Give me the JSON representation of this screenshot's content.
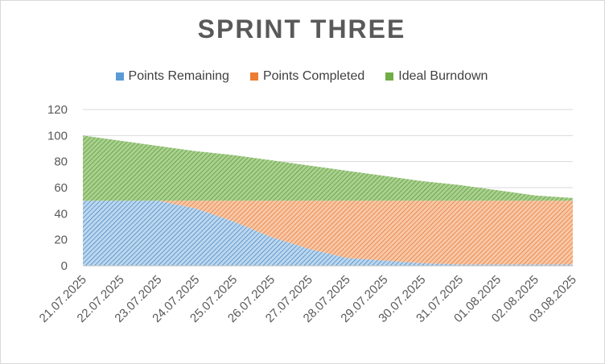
{
  "chart_data": {
    "type": "area",
    "title": "SPRINT THREE",
    "xlabel": "",
    "ylabel": "",
    "ylim": [
      0,
      120
    ],
    "yticks": [
      0,
      20,
      40,
      60,
      80,
      100,
      120
    ],
    "grid": true,
    "legend_position": "top",
    "stacked": true,
    "categories": [
      "21.07.2025",
      "22.07.2025",
      "23.07.2025",
      "24.07.2025",
      "25.07.2025",
      "26.07.2025",
      "27.07.2025",
      "28.07.2025",
      "29.07.2025",
      "30.07.2025",
      "31.07.2025",
      "01.08.2025",
      "02.08.2025",
      "03.08.2025"
    ],
    "series": [
      {
        "name": "Points Remaining",
        "color": "#5b9bd5",
        "values": [
          50,
          50,
          50,
          44,
          34,
          22,
          13,
          6,
          4,
          2,
          1,
          1,
          1,
          1
        ]
      },
      {
        "name": "Points Completed",
        "color": "#ed7d31",
        "values": [
          0,
          0,
          0,
          6,
          16,
          28,
          37,
          44,
          46,
          48,
          49,
          49,
          49,
          49
        ]
      },
      {
        "name": "Ideal Burndown",
        "color": "#70ad47",
        "values": [
          50,
          46,
          42,
          38,
          35,
          31,
          27,
          23,
          19,
          15,
          12,
          8,
          4,
          2
        ]
      }
    ]
  }
}
